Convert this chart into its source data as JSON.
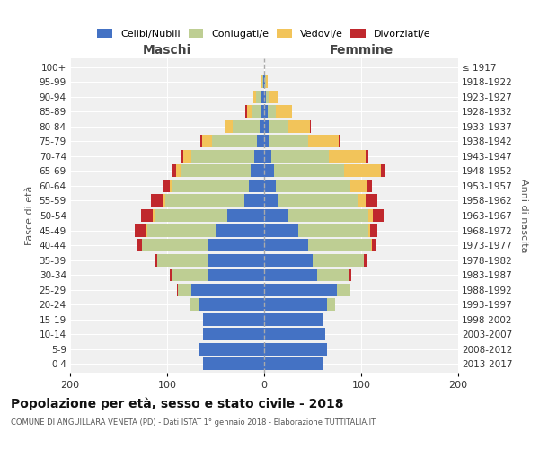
{
  "age_groups": [
    "0-4",
    "5-9",
    "10-14",
    "15-19",
    "20-24",
    "25-29",
    "30-34",
    "35-39",
    "40-44",
    "45-49",
    "50-54",
    "55-59",
    "60-64",
    "65-69",
    "70-74",
    "75-79",
    "80-84",
    "85-89",
    "90-94",
    "95-99",
    "100+"
  ],
  "birth_years": [
    "2013-2017",
    "2008-2012",
    "2003-2007",
    "1998-2002",
    "1993-1997",
    "1988-1992",
    "1983-1987",
    "1978-1982",
    "1973-1977",
    "1968-1972",
    "1963-1967",
    "1958-1962",
    "1953-1957",
    "1948-1952",
    "1943-1947",
    "1938-1942",
    "1933-1937",
    "1928-1932",
    "1923-1927",
    "1918-1922",
    "≤ 1917"
  ],
  "colors": {
    "celibi": "#4472C4",
    "coniugati": "#BECE93",
    "vedovi": "#F2C45A",
    "divorziati": "#C0282D"
  },
  "xlim": 200,
  "title": "Popolazione per età, sesso e stato civile - 2018",
  "subtitle": "COMUNE DI ANGUILLARA VENETA (PD) - Dati ISTAT 1° gennaio 2018 - Elaborazione TUTTITALIA.IT",
  "ylabel_left": "Fasce di età",
  "ylabel_right": "Anni di nascita",
  "xlabel_maschi": "Maschi",
  "xlabel_femmine": "Femmine",
  "legend_labels": [
    "Celibi/Nubili",
    "Coniugati/e",
    "Vedovi/e",
    "Divorziati/e"
  ],
  "bg_color": "#f0f0f0",
  "males_celibi": [
    63,
    68,
    63,
    63,
    68,
    75,
    57,
    57,
    58,
    50,
    38,
    20,
    16,
    14,
    10,
    7,
    5,
    4,
    3,
    1,
    0
  ],
  "males_coniugati": [
    0,
    0,
    0,
    0,
    8,
    14,
    38,
    53,
    68,
    70,
    75,
    82,
    78,
    72,
    65,
    47,
    27,
    9,
    5,
    1,
    0
  ],
  "males_vedovi": [
    0,
    0,
    0,
    0,
    0,
    0,
    0,
    0,
    0,
    1,
    2,
    3,
    3,
    5,
    8,
    10,
    8,
    5,
    3,
    1,
    0
  ],
  "males_divorziati": [
    0,
    0,
    0,
    0,
    0,
    1,
    2,
    3,
    5,
    12,
    12,
    12,
    8,
    3,
    2,
    2,
    1,
    1,
    0,
    0,
    0
  ],
  "females_nubili": [
    60,
    65,
    63,
    60,
    65,
    75,
    55,
    50,
    45,
    35,
    25,
    15,
    12,
    10,
    7,
    5,
    5,
    4,
    2,
    1,
    0
  ],
  "females_coniugate": [
    0,
    0,
    0,
    0,
    8,
    14,
    33,
    53,
    65,
    72,
    82,
    82,
    77,
    72,
    60,
    40,
    20,
    8,
    4,
    1,
    0
  ],
  "females_vedove": [
    0,
    0,
    0,
    0,
    0,
    0,
    0,
    0,
    1,
    2,
    5,
    8,
    17,
    38,
    38,
    32,
    22,
    17,
    9,
    2,
    0
  ],
  "females_divorziate": [
    0,
    0,
    0,
    0,
    0,
    0,
    2,
    3,
    5,
    8,
    12,
    12,
    5,
    5,
    2,
    1,
    1,
    0,
    0,
    0,
    0
  ]
}
